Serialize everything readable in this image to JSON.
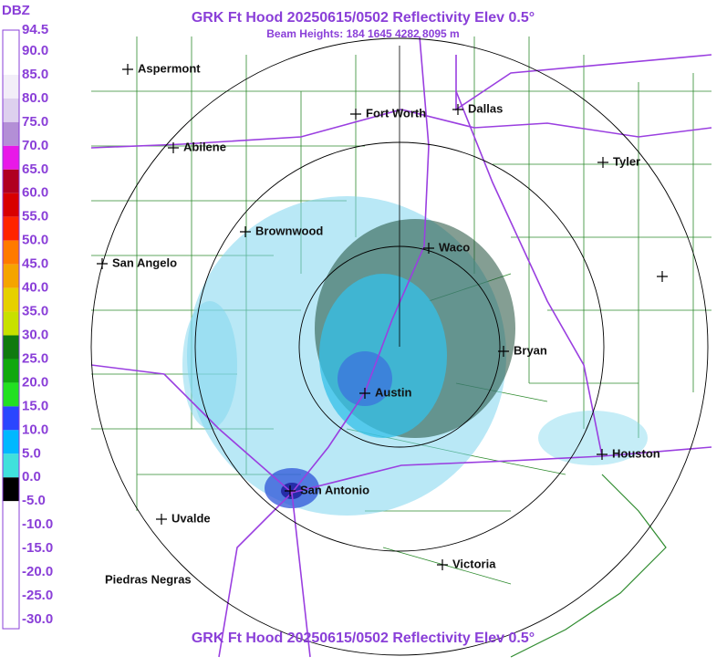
{
  "header": {
    "title": "GRK Ft Hood 20250615/0502 Reflectivity Elev 0.5°",
    "subtitle": "Beam Heights: 184 1645 4282 8095 m"
  },
  "legend": {
    "unit": "DBZ",
    "labels": [
      "94.5",
      "90.0",
      "85.0",
      "80.0",
      "75.0",
      "70.0",
      "65.0",
      "60.0",
      "55.0",
      "50.0",
      "45.0",
      "40.0",
      "35.0",
      "30.0",
      "25.0",
      "20.0",
      "15.0",
      "10.0",
      "5.0",
      "0.0",
      "-5.0",
      "-10.0",
      "-15.0",
      "-20.0",
      "-25.0",
      "-30.0"
    ],
    "colors": [
      "#ffffff",
      "#ffffff",
      "#f2eef8",
      "#ddd0ee",
      "#b38fd6",
      "#e818e8",
      "#b00020",
      "#d80000",
      "#ff2400",
      "#ff7a00",
      "#f5a400",
      "#e6d000",
      "#c8e000",
      "#107a10",
      "#10a810",
      "#22e022",
      "#2a46ff",
      "#00b8ff",
      "#40e0dc",
      "#000000",
      "#ffffff",
      "#ffffff",
      "#ffffff",
      "#ffffff",
      "#ffffff"
    ]
  },
  "cities": [
    "Aspermont",
    "Fort Worth",
    "Dallas",
    "Abilene",
    "Tyler",
    "Brownwood",
    "Waco",
    "San Angelo",
    "Bryan",
    "Austin",
    "Houston",
    "San Antonio",
    "Uvalde",
    "Victoria",
    "Piedras Negras"
  ],
  "footer_title": "GRK Ft Hood 20250615/0502 Reflectivity Elev 0.5°"
}
